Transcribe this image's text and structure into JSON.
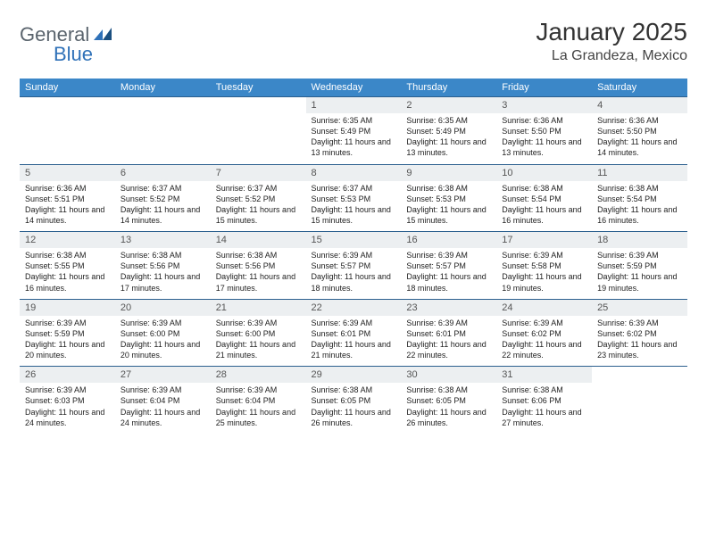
{
  "logo": {
    "general": "General",
    "blue": "Blue"
  },
  "title": "January 2025",
  "location": "La Grandeza, Mexico",
  "colors": {
    "header_bg": "#3b87c8",
    "header_text": "#ffffff",
    "daynum_bg": "#eceff1",
    "border": "#2b5f8e",
    "logo_gray": "#5a646d",
    "logo_blue": "#2f71b8"
  },
  "dayNames": [
    "Sunday",
    "Monday",
    "Tuesday",
    "Wednesday",
    "Thursday",
    "Friday",
    "Saturday"
  ],
  "weeks": [
    [
      null,
      null,
      null,
      {
        "n": "1",
        "sr": "6:35 AM",
        "ss": "5:49 PM",
        "dl": "11 hours and 13 minutes."
      },
      {
        "n": "2",
        "sr": "6:35 AM",
        "ss": "5:49 PM",
        "dl": "11 hours and 13 minutes."
      },
      {
        "n": "3",
        "sr": "6:36 AM",
        "ss": "5:50 PM",
        "dl": "11 hours and 13 minutes."
      },
      {
        "n": "4",
        "sr": "6:36 AM",
        "ss": "5:50 PM",
        "dl": "11 hours and 14 minutes."
      }
    ],
    [
      {
        "n": "5",
        "sr": "6:36 AM",
        "ss": "5:51 PM",
        "dl": "11 hours and 14 minutes."
      },
      {
        "n": "6",
        "sr": "6:37 AM",
        "ss": "5:52 PM",
        "dl": "11 hours and 14 minutes."
      },
      {
        "n": "7",
        "sr": "6:37 AM",
        "ss": "5:52 PM",
        "dl": "11 hours and 15 minutes."
      },
      {
        "n": "8",
        "sr": "6:37 AM",
        "ss": "5:53 PM",
        "dl": "11 hours and 15 minutes."
      },
      {
        "n": "9",
        "sr": "6:38 AM",
        "ss": "5:53 PM",
        "dl": "11 hours and 15 minutes."
      },
      {
        "n": "10",
        "sr": "6:38 AM",
        "ss": "5:54 PM",
        "dl": "11 hours and 16 minutes."
      },
      {
        "n": "11",
        "sr": "6:38 AM",
        "ss": "5:54 PM",
        "dl": "11 hours and 16 minutes."
      }
    ],
    [
      {
        "n": "12",
        "sr": "6:38 AM",
        "ss": "5:55 PM",
        "dl": "11 hours and 16 minutes."
      },
      {
        "n": "13",
        "sr": "6:38 AM",
        "ss": "5:56 PM",
        "dl": "11 hours and 17 minutes."
      },
      {
        "n": "14",
        "sr": "6:38 AM",
        "ss": "5:56 PM",
        "dl": "11 hours and 17 minutes."
      },
      {
        "n": "15",
        "sr": "6:39 AM",
        "ss": "5:57 PM",
        "dl": "11 hours and 18 minutes."
      },
      {
        "n": "16",
        "sr": "6:39 AM",
        "ss": "5:57 PM",
        "dl": "11 hours and 18 minutes."
      },
      {
        "n": "17",
        "sr": "6:39 AM",
        "ss": "5:58 PM",
        "dl": "11 hours and 19 minutes."
      },
      {
        "n": "18",
        "sr": "6:39 AM",
        "ss": "5:59 PM",
        "dl": "11 hours and 19 minutes."
      }
    ],
    [
      {
        "n": "19",
        "sr": "6:39 AM",
        "ss": "5:59 PM",
        "dl": "11 hours and 20 minutes."
      },
      {
        "n": "20",
        "sr": "6:39 AM",
        "ss": "6:00 PM",
        "dl": "11 hours and 20 minutes."
      },
      {
        "n": "21",
        "sr": "6:39 AM",
        "ss": "6:00 PM",
        "dl": "11 hours and 21 minutes."
      },
      {
        "n": "22",
        "sr": "6:39 AM",
        "ss": "6:01 PM",
        "dl": "11 hours and 21 minutes."
      },
      {
        "n": "23",
        "sr": "6:39 AM",
        "ss": "6:01 PM",
        "dl": "11 hours and 22 minutes."
      },
      {
        "n": "24",
        "sr": "6:39 AM",
        "ss": "6:02 PM",
        "dl": "11 hours and 22 minutes."
      },
      {
        "n": "25",
        "sr": "6:39 AM",
        "ss": "6:02 PM",
        "dl": "11 hours and 23 minutes."
      }
    ],
    [
      {
        "n": "26",
        "sr": "6:39 AM",
        "ss": "6:03 PM",
        "dl": "11 hours and 24 minutes."
      },
      {
        "n": "27",
        "sr": "6:39 AM",
        "ss": "6:04 PM",
        "dl": "11 hours and 24 minutes."
      },
      {
        "n": "28",
        "sr": "6:39 AM",
        "ss": "6:04 PM",
        "dl": "11 hours and 25 minutes."
      },
      {
        "n": "29",
        "sr": "6:38 AM",
        "ss": "6:05 PM",
        "dl": "11 hours and 26 minutes."
      },
      {
        "n": "30",
        "sr": "6:38 AM",
        "ss": "6:05 PM",
        "dl": "11 hours and 26 minutes."
      },
      {
        "n": "31",
        "sr": "6:38 AM",
        "ss": "6:06 PM",
        "dl": "11 hours and 27 minutes."
      },
      null
    ]
  ],
  "labels": {
    "sunrise": "Sunrise:",
    "sunset": "Sunset:",
    "daylight": "Daylight:"
  }
}
